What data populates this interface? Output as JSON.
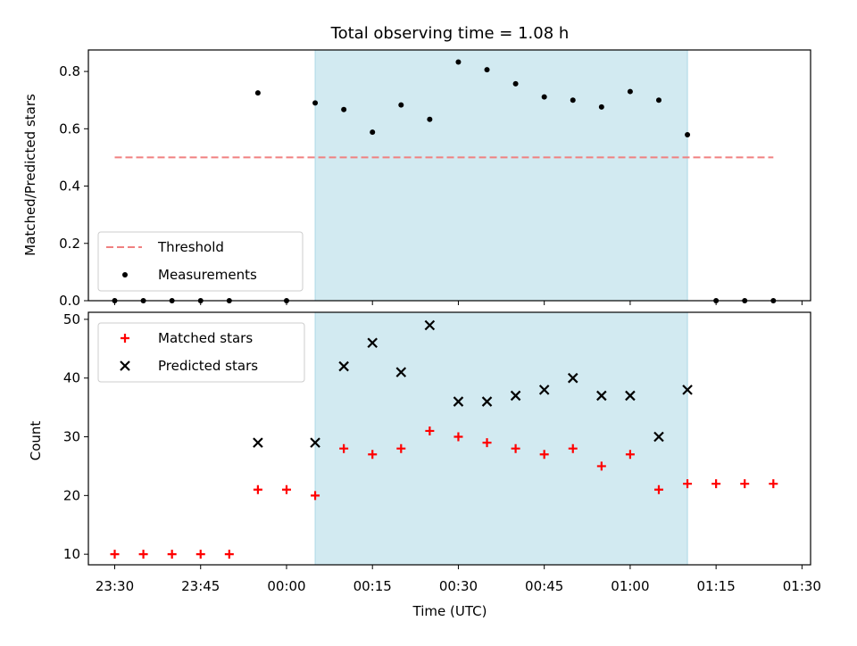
{
  "chart_data": [
    {
      "type": "scatter",
      "title": "Total observing time = 1.08 h",
      "xlabel": "",
      "ylabel": "Matched/Predicted stars",
      "ylim": [
        0,
        0.875
      ],
      "yticks": [
        "0.0",
        "0.2",
        "0.4",
        "0.6",
        "0.8"
      ],
      "shaded_interval": [
        "00:05",
        "01:10"
      ],
      "shade_color": "#add8e6",
      "series": [
        {
          "name": "Threshold",
          "style": "dashed-line",
          "color": "#f08080",
          "x": [
            "23:30",
            "01:25"
          ],
          "y": [
            0.5,
            0.5
          ]
        },
        {
          "name": "Measurements",
          "style": "dot",
          "color": "#000000",
          "x": [
            "23:30",
            "23:35",
            "23:40",
            "23:45",
            "23:50",
            "23:55",
            "00:00",
            "00:05",
            "00:10",
            "00:15",
            "00:20",
            "00:25",
            "00:30",
            "00:35",
            "00:40",
            "00:45",
            "00:50",
            "00:55",
            "01:00",
            "01:05",
            "01:10",
            "01:15",
            "01:20",
            "01:25"
          ],
          "y": [
            0,
            0,
            0,
            0,
            0,
            0.725,
            0,
            0.69,
            0.667,
            0.588,
            0.683,
            0.633,
            0.833,
            0.806,
            0.757,
            0.711,
            0.7,
            0.676,
            0.73,
            0.7,
            0.579,
            0,
            0,
            0
          ]
        }
      ],
      "legend": "lower-left"
    },
    {
      "type": "scatter",
      "xlabel": "Time (UTC)",
      "ylabel": "Count",
      "ylim": [
        8.2,
        51.2
      ],
      "yticks": [
        "10",
        "20",
        "30",
        "40",
        "50"
      ],
      "xticks": [
        "23:30",
        "23:45",
        "00:00",
        "00:15",
        "00:30",
        "00:45",
        "01:00",
        "01:15",
        "01:30"
      ],
      "shaded_interval": [
        "00:05",
        "01:10"
      ],
      "shade_color": "#add8e6",
      "series": [
        {
          "name": "Matched stars",
          "style": "plus",
          "color": "#ff0000",
          "x": [
            "23:30",
            "23:35",
            "23:40",
            "23:45",
            "23:50",
            "23:55",
            "00:00",
            "00:05",
            "00:10",
            "00:15",
            "00:20",
            "00:25",
            "00:30",
            "00:35",
            "00:40",
            "00:45",
            "00:50",
            "00:55",
            "01:00",
            "01:05",
            "01:10",
            "01:15",
            "01:20",
            "01:25"
          ],
          "y": [
            10,
            10,
            10,
            10,
            10,
            21,
            21,
            20,
            28,
            27,
            28,
            31,
            30,
            29,
            28,
            27,
            28,
            25,
            27,
            21,
            22,
            22,
            22,
            22
          ]
        },
        {
          "name": "Predicted stars",
          "style": "x",
          "color": "#000000",
          "x": [
            "23:55",
            "00:05",
            "00:10",
            "00:15",
            "00:20",
            "00:25",
            "00:30",
            "00:35",
            "00:40",
            "00:45",
            "00:50",
            "00:55",
            "01:00",
            "01:05",
            "01:10"
          ],
          "y": [
            29,
            29,
            42,
            46,
            41,
            49,
            36,
            36,
            37,
            38,
            40,
            37,
            37,
            30,
            38
          ]
        }
      ],
      "legend": "upper-left"
    }
  ]
}
